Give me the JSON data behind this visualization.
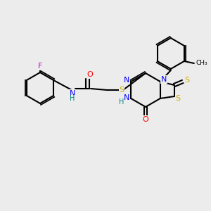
{
  "bg_color": "#ececec",
  "atom_colors": {
    "C": "#000000",
    "N": "#0000ff",
    "O": "#ff0000",
    "S": "#ccaa00",
    "F": "#cc00cc",
    "H": "#008080"
  },
  "bond_color": "#000000",
  "font_size": 7.5
}
